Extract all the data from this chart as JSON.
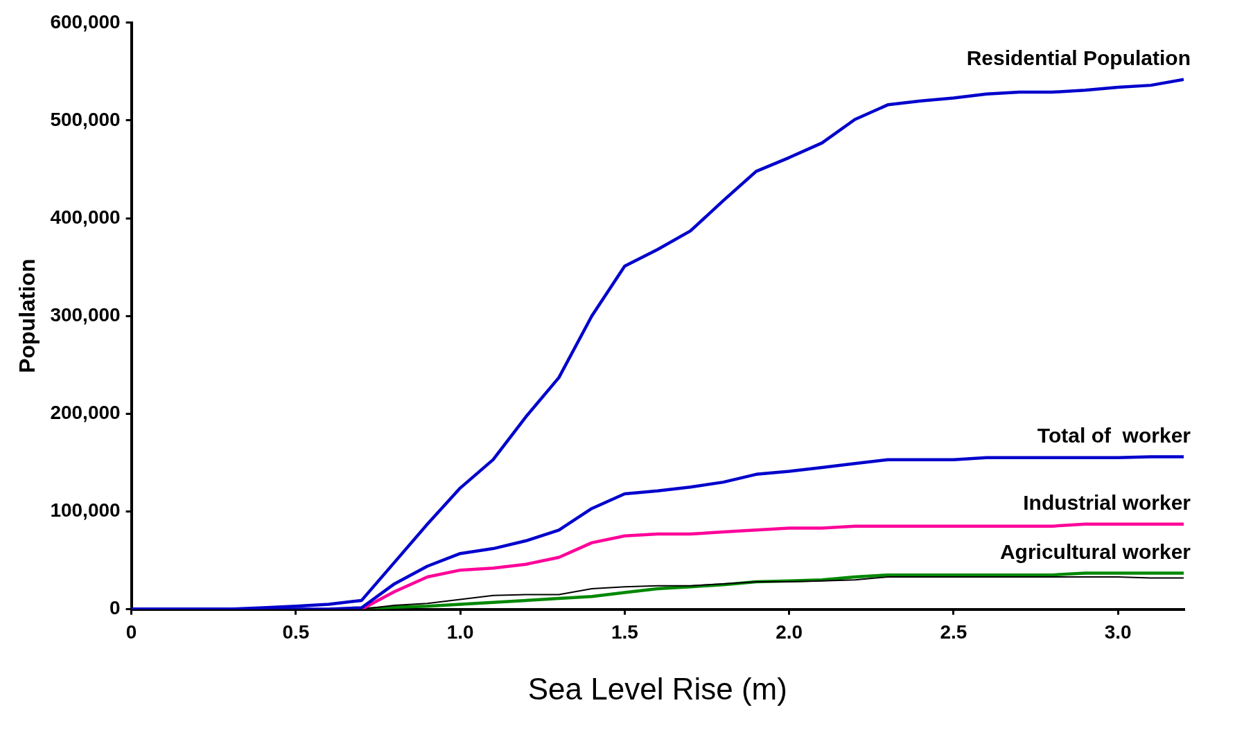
{
  "chart_data": {
    "type": "line",
    "xlabel": "Sea Level Rise (m)",
    "ylabel": "Population",
    "x": [
      0,
      0.1,
      0.2,
      0.3,
      0.4,
      0.5,
      0.6,
      0.7,
      0.8,
      0.9,
      1.0,
      1.1,
      1.2,
      1.3,
      1.4,
      1.5,
      1.6,
      1.7,
      1.8,
      1.9,
      2.0,
      2.1,
      2.2,
      2.3,
      2.4,
      2.5,
      2.6,
      2.7,
      2.8,
      2.9,
      3.0,
      3.1,
      3.2
    ],
    "series": [
      {
        "name": "Residential Population",
        "color": "#0000cc",
        "values": [
          0,
          0,
          0,
          0,
          1500,
          3000,
          5000,
          9000,
          48000,
          87000,
          124000,
          153000,
          197000,
          237000,
          300000,
          351000,
          368000,
          387000,
          418000,
          448000,
          462000,
          477000,
          501000,
          516000,
          520000,
          523000,
          527000,
          529000,
          529000,
          531000,
          534000,
          536000,
          542000
        ]
      },
      {
        "name": "Total of  worker",
        "color": "#0000cc",
        "values": [
          0,
          0,
          0,
          0,
          0,
          0,
          0,
          1500,
          26000,
          44000,
          57000,
          62000,
          70000,
          81000,
          103000,
          118000,
          121000,
          125000,
          130000,
          138000,
          141000,
          145000,
          149000,
          153000,
          153000,
          153000,
          155000,
          155000,
          155000,
          155000,
          155000,
          156000,
          156000
        ]
      },
      {
        "name": "Industrial worker",
        "color": "#ff0099",
        "values": [
          null,
          null,
          null,
          null,
          null,
          null,
          null,
          0,
          18000,
          33000,
          40000,
          42000,
          46000,
          53000,
          68000,
          75000,
          77000,
          77000,
          79000,
          81000,
          83000,
          83000,
          85000,
          85000,
          85000,
          85000,
          85000,
          85000,
          85000,
          87000,
          87000,
          87000,
          87000
        ]
      },
      {
        "color": "#000000",
        "values": [
          0,
          0,
          0,
          0,
          0,
          0,
          0,
          0,
          4000,
          6000,
          10000,
          14000,
          15000,
          15000,
          21000,
          23000,
          24000,
          24000,
          26000,
          28000,
          28000,
          29000,
          30000,
          33000,
          33000,
          33000,
          33000,
          33000,
          33000,
          33000,
          33000,
          32000,
          32000
        ]
      },
      {
        "name": "Agricultural worker",
        "color": "#008800",
        "values": [
          null,
          null,
          null,
          null,
          null,
          null,
          null,
          0,
          2000,
          3000,
          5000,
          7000,
          9000,
          11000,
          13000,
          17000,
          21000,
          23000,
          25000,
          28000,
          29000,
          30000,
          33000,
          35000,
          35000,
          35000,
          35000,
          35000,
          35000,
          37000,
          37000,
          37000,
          37000
        ]
      }
    ],
    "xlim": [
      0,
      3.2
    ],
    "xticks": [
      0,
      {
        "value": 0.5,
        "label": "0.5"
      },
      {
        "value": 1,
        "label": "1.0"
      },
      {
        "value": 1.5,
        "label": "1.5"
      },
      {
        "value": 2,
        "label": "2.0"
      },
      {
        "value": 2.5,
        "label": "2.5"
      },
      {
        "value": 3,
        "label": "3.0"
      }
    ],
    "ylim": [
      0,
      600000
    ],
    "yticks": [
      0,
      {
        "value": 100000,
        "label": "100,000"
      },
      {
        "value": 200000,
        "label": "200,000"
      },
      {
        "value": 300000,
        "label": "300,000"
      },
      {
        "value": 400000,
        "label": "400,000"
      },
      {
        "value": 500000,
        "label": "500,000"
      },
      {
        "value": 600000,
        "label": "600,000"
      }
    ],
    "legend": false,
    "grid": false,
    "marker": "none",
    "line_style": "solid"
  }
}
